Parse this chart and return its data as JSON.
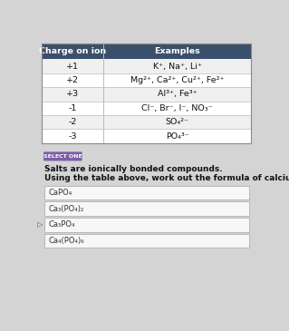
{
  "table_header": [
    "Charge on ion",
    "Examples"
  ],
  "table_rows": [
    [
      "+1",
      "K⁺, Na⁺, Li⁺"
    ],
    [
      "+2",
      "Mg²⁺, Ca²⁺, Cu²⁺, Fe²⁺"
    ],
    [
      "+3",
      "Al³⁺, Fe³⁺"
    ],
    [
      "-1",
      "Cl⁻, Br⁻, I⁻, NO₃⁻"
    ],
    [
      "-2",
      "SO₄²⁻"
    ],
    [
      "-3",
      "PO₄³⁻"
    ]
  ],
  "header_bg": "#3a4f6b",
  "header_fg": "#ffffff",
  "cell_bg_odd": "#f0f0f0",
  "cell_bg_even": "#ffffff",
  "cell_border": "#bbbbbb",
  "select_one_text": "SELECT ONE",
  "select_one_bg": "#7b5ea7",
  "select_one_fg": "#ffffff",
  "instruction_line1": "Salts are ionically bonded compounds.",
  "instruction_line2": "Using the table above, work out the formula of calcium phosphate.",
  "options": [
    "CaPO₄",
    "Ca₃(PO₄)₂",
    "Ca₃PO₄",
    "Ca₄(PO₄)₆"
  ],
  "option_bg": "#f7f7f7",
  "option_border": "#b0b0b0",
  "page_bg": "#d4d4d4",
  "table_outer_border": "#888888",
  "arrow_color": "#555555"
}
